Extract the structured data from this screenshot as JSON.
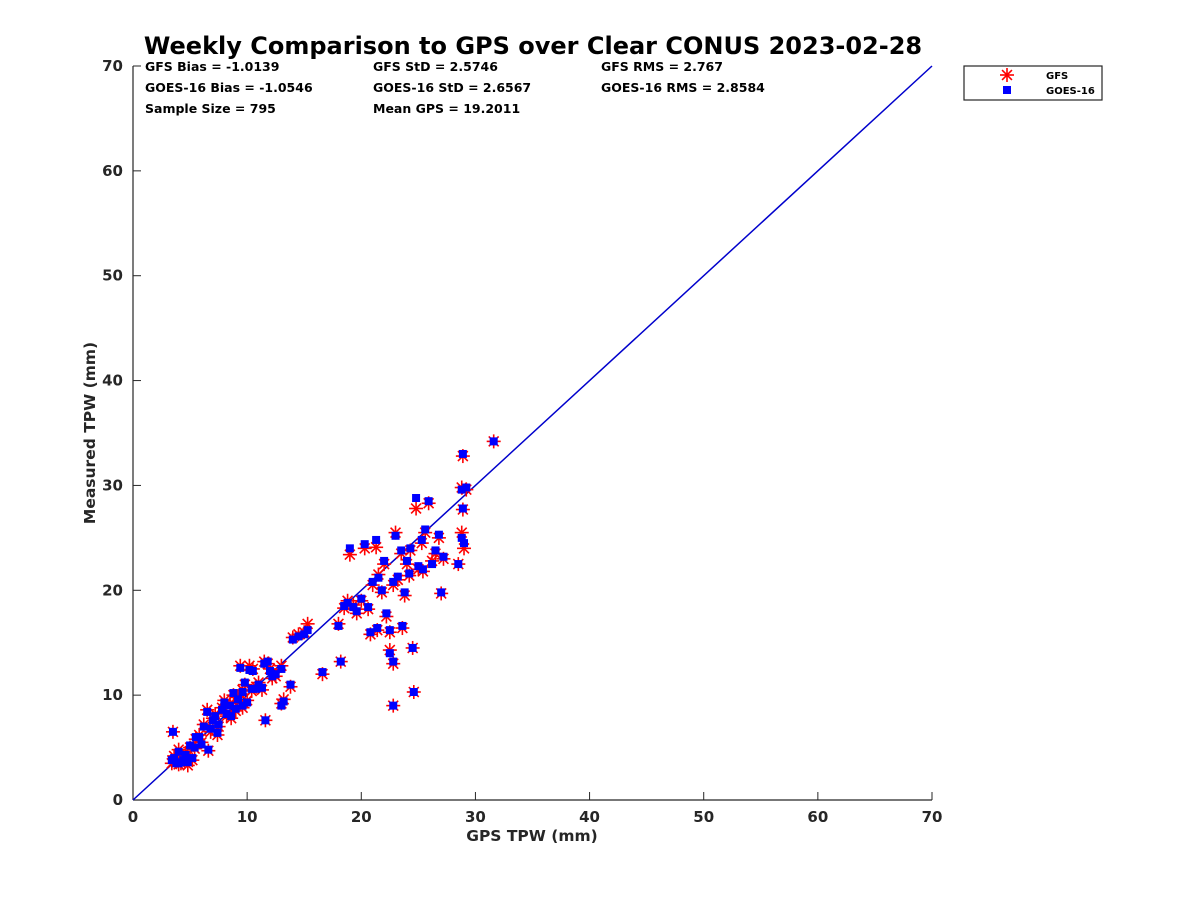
{
  "colors": {
    "gfs": "#ff0000",
    "goes16": "#0000ff",
    "one_to_one_line": "#0000cc",
    "axes": "#262626"
  },
  "stats": {
    "gfs_bias": "GFS Bias = -1.0139",
    "gfs_std": "GFS StD = 2.5746",
    "gfs_rms": "GFS RMS = 2.767",
    "goes_bias": "GOES-16 Bias = -1.0546",
    "goes_std": "GOES-16 StD = 2.6567",
    "goes_rms": "GOES-16 RMS = 2.8584",
    "sample_size": "Sample Size = 795",
    "mean_gps": "Mean GPS = 19.2011"
  },
  "chart_data": {
    "type": "scatter",
    "title": "Weekly Comparison to GPS over Clear CONUS 2023-02-28",
    "xlabel": "GPS TPW (mm)",
    "ylabel": "Measured TPW (mm)",
    "xlim": [
      0,
      70
    ],
    "ylim": [
      0,
      70
    ],
    "xticks": [
      "0",
      "10",
      "20",
      "30",
      "40",
      "50",
      "60",
      "70"
    ],
    "yticks": [
      "0",
      "10",
      "20",
      "30",
      "40",
      "50",
      "60",
      "70"
    ],
    "grid": false,
    "legend_position": "outside-top-right",
    "reference_line": {
      "name": "1:1",
      "x": [
        0,
        70
      ],
      "y": [
        0,
        70
      ]
    },
    "series": [
      {
        "name": "GFS",
        "marker": "asterisk",
        "points": [
          [
            3.5,
            6.5
          ],
          [
            3.6,
            4.2
          ],
          [
            3.8,
            3.6
          ],
          [
            4.0,
            4.8
          ],
          [
            4.2,
            3.5
          ],
          [
            4.4,
            4.0
          ],
          [
            4.6,
            4.5
          ],
          [
            4.8,
            3.3
          ],
          [
            5.0,
            5.0
          ],
          [
            5.2,
            3.8
          ],
          [
            5.5,
            5.8
          ],
          [
            5.8,
            6.2
          ],
          [
            6.0,
            5.5
          ],
          [
            6.2,
            7.2
          ],
          [
            6.5,
            8.6
          ],
          [
            6.8,
            6.5
          ],
          [
            7.0,
            7.8
          ],
          [
            7.2,
            8.2
          ],
          [
            7.5,
            7.0
          ],
          [
            7.8,
            8.8
          ],
          [
            8.0,
            9.5
          ],
          [
            8.2,
            8.0
          ],
          [
            8.5,
            9.2
          ],
          [
            8.8,
            10.0
          ],
          [
            9.0,
            8.5
          ],
          [
            9.2,
            9.8
          ],
          [
            9.4,
            12.8
          ],
          [
            9.6,
            10.5
          ],
          [
            9.8,
            11.0
          ],
          [
            10.0,
            9.5
          ],
          [
            10.2,
            12.8
          ],
          [
            10.5,
            12.5
          ],
          [
            10.8,
            10.8
          ],
          [
            11.0,
            11.2
          ],
          [
            11.3,
            10.5
          ],
          [
            11.5,
            13.2
          ],
          [
            11.8,
            13.0
          ],
          [
            12.0,
            12.5
          ],
          [
            12.5,
            11.8
          ],
          [
            13.0,
            12.8
          ],
          [
            13.0,
            9.2
          ],
          [
            13.2,
            9.6
          ],
          [
            13.8,
            10.8
          ],
          [
            14.0,
            15.5
          ],
          [
            14.5,
            15.8
          ],
          [
            15.0,
            16.0
          ],
          [
            15.3,
            16.8
          ],
          [
            11.6,
            7.6
          ],
          [
            18.0,
            16.8
          ],
          [
            18.2,
            13.2
          ],
          [
            18.5,
            18.3
          ],
          [
            18.8,
            19.0
          ],
          [
            19.0,
            23.4
          ],
          [
            19.3,
            18.6
          ],
          [
            19.6,
            17.8
          ],
          [
            20.0,
            19.0
          ],
          [
            20.3,
            24.0
          ],
          [
            20.6,
            18.2
          ],
          [
            21.0,
            20.5
          ],
          [
            21.3,
            24.1
          ],
          [
            21.5,
            21.5
          ],
          [
            21.8,
            19.8
          ],
          [
            22.0,
            22.5
          ],
          [
            22.2,
            17.5
          ],
          [
            22.5,
            16.0
          ],
          [
            22.8,
            20.5
          ],
          [
            23.0,
            25.5
          ],
          [
            23.2,
            21.0
          ],
          [
            23.5,
            23.5
          ],
          [
            23.8,
            19.5
          ],
          [
            24.0,
            22.5
          ],
          [
            24.3,
            23.8
          ],
          [
            24.5,
            14.5
          ],
          [
            24.6,
            10.3
          ],
          [
            22.8,
            9.0
          ],
          [
            22.5,
            14.3
          ],
          [
            22.8,
            13.0
          ],
          [
            24.8,
            27.8
          ],
          [
            25.0,
            22.0
          ],
          [
            25.3,
            24.5
          ],
          [
            25.6,
            25.5
          ],
          [
            25.9,
            28.3
          ],
          [
            26.2,
            22.8
          ],
          [
            26.5,
            23.5
          ],
          [
            26.8,
            25.0
          ],
          [
            27.0,
            19.7
          ],
          [
            27.2,
            23.0
          ],
          [
            28.5,
            22.5
          ],
          [
            28.8,
            25.5
          ],
          [
            28.9,
            27.7
          ],
          [
            29.0,
            24.0
          ],
          [
            28.8,
            29.8
          ],
          [
            29.2,
            29.6
          ],
          [
            28.9,
            32.8
          ],
          [
            31.6,
            34.2
          ],
          [
            3.4,
            3.5
          ],
          [
            4.0,
            3.4
          ],
          [
            5.4,
            4.9
          ],
          [
            6.6,
            4.7
          ],
          [
            7.4,
            6.2
          ],
          [
            8.6,
            7.8
          ],
          [
            9.6,
            8.8
          ],
          [
            10.4,
            10.4
          ],
          [
            12.2,
            11.6
          ],
          [
            16.6,
            12.0
          ],
          [
            20.8,
            15.8
          ],
          [
            21.4,
            16.2
          ],
          [
            24.2,
            21.4
          ],
          [
            25.4,
            21.8
          ],
          [
            23.6,
            16.4
          ]
        ]
      },
      {
        "name": "GOES-16",
        "marker": "square",
        "points": [
          [
            3.5,
            6.5
          ],
          [
            3.6,
            4.0
          ],
          [
            3.8,
            3.5
          ],
          [
            4.0,
            4.6
          ],
          [
            4.2,
            3.6
          ],
          [
            4.4,
            3.8
          ],
          [
            4.6,
            4.3
          ],
          [
            4.8,
            3.6
          ],
          [
            5.0,
            5.2
          ],
          [
            5.2,
            4.0
          ],
          [
            5.5,
            6.0
          ],
          [
            5.8,
            6.0
          ],
          [
            6.0,
            5.3
          ],
          [
            6.2,
            7.0
          ],
          [
            6.5,
            8.4
          ],
          [
            6.8,
            6.8
          ],
          [
            7.0,
            7.6
          ],
          [
            7.2,
            8.0
          ],
          [
            7.5,
            7.2
          ],
          [
            7.8,
            8.6
          ],
          [
            8.0,
            9.3
          ],
          [
            8.2,
            8.2
          ],
          [
            8.5,
            9.0
          ],
          [
            8.8,
            10.2
          ],
          [
            9.0,
            8.7
          ],
          [
            9.2,
            9.6
          ],
          [
            9.4,
            12.6
          ],
          [
            9.6,
            10.3
          ],
          [
            9.8,
            11.2
          ],
          [
            10.0,
            9.3
          ],
          [
            10.2,
            12.4
          ],
          [
            10.5,
            12.3
          ],
          [
            10.8,
            10.6
          ],
          [
            11.0,
            11.0
          ],
          [
            11.3,
            10.7
          ],
          [
            11.5,
            13.0
          ],
          [
            11.8,
            13.2
          ],
          [
            12.0,
            12.3
          ],
          [
            12.5,
            12.0
          ],
          [
            13.0,
            12.5
          ],
          [
            13.0,
            9.0
          ],
          [
            13.2,
            9.4
          ],
          [
            13.8,
            11.0
          ],
          [
            14.0,
            15.3
          ],
          [
            14.5,
            15.6
          ],
          [
            15.0,
            15.8
          ],
          [
            15.3,
            16.2
          ],
          [
            11.6,
            7.6
          ],
          [
            18.0,
            16.6
          ],
          [
            18.2,
            13.2
          ],
          [
            18.5,
            18.5
          ],
          [
            18.8,
            18.8
          ],
          [
            19.0,
            24.0
          ],
          [
            19.3,
            18.4
          ],
          [
            19.6,
            18.0
          ],
          [
            20.0,
            19.2
          ],
          [
            20.3,
            24.4
          ],
          [
            20.6,
            18.4
          ],
          [
            21.0,
            20.8
          ],
          [
            21.3,
            24.8
          ],
          [
            21.5,
            21.2
          ],
          [
            21.8,
            20.0
          ],
          [
            22.0,
            22.8
          ],
          [
            22.2,
            17.8
          ],
          [
            22.5,
            16.2
          ],
          [
            22.8,
            20.8
          ],
          [
            23.0,
            25.2
          ],
          [
            23.2,
            21.3
          ],
          [
            23.5,
            23.8
          ],
          [
            23.8,
            19.8
          ],
          [
            24.0,
            22.8
          ],
          [
            24.3,
            24.0
          ],
          [
            24.5,
            14.5
          ],
          [
            24.6,
            10.3
          ],
          [
            22.8,
            9.0
          ],
          [
            22.5,
            14.0
          ],
          [
            22.8,
            13.2
          ],
          [
            24.8,
            28.8
          ],
          [
            25.0,
            22.3
          ],
          [
            25.3,
            24.8
          ],
          [
            25.6,
            25.8
          ],
          [
            25.9,
            28.5
          ],
          [
            26.2,
            22.5
          ],
          [
            26.5,
            23.8
          ],
          [
            26.8,
            25.3
          ],
          [
            27.0,
            19.8
          ],
          [
            27.2,
            23.2
          ],
          [
            28.5,
            22.5
          ],
          [
            28.8,
            25.0
          ],
          [
            28.9,
            27.8
          ],
          [
            29.0,
            24.5
          ],
          [
            28.8,
            29.6
          ],
          [
            29.2,
            29.8
          ],
          [
            28.9,
            33.0
          ],
          [
            31.6,
            34.2
          ],
          [
            3.4,
            3.8
          ],
          [
            4.0,
            3.5
          ],
          [
            5.4,
            5.0
          ],
          [
            6.6,
            4.8
          ],
          [
            7.4,
            6.4
          ],
          [
            8.6,
            8.0
          ],
          [
            9.6,
            9.0
          ],
          [
            10.4,
            10.6
          ],
          [
            12.2,
            11.8
          ],
          [
            16.6,
            12.2
          ],
          [
            20.8,
            16.0
          ],
          [
            21.4,
            16.4
          ],
          [
            24.2,
            21.6
          ],
          [
            25.4,
            22.0
          ],
          [
            23.6,
            16.6
          ]
        ]
      }
    ]
  }
}
